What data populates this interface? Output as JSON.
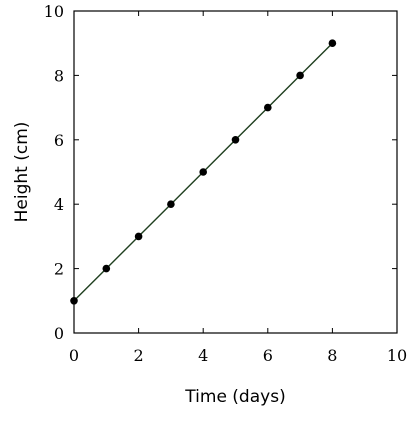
{
  "chart_data": {
    "type": "line",
    "title": "",
    "xlabel": "Time (days)",
    "ylabel": "Height (cm)",
    "xlim": [
      0,
      10
    ],
    "ylim": [
      0,
      10
    ],
    "xticks": [
      0,
      2,
      4,
      6,
      8,
      10
    ],
    "yticks": [
      0,
      2,
      4,
      6,
      8,
      10
    ],
    "xtick_labels": [
      "0",
      "2",
      "4",
      "6",
      "8",
      "10"
    ],
    "ytick_labels": [
      "0",
      "2",
      "4",
      "6",
      "8",
      "10"
    ],
    "grid": false,
    "legend": "none",
    "series": [
      {
        "x": [
          0,
          1,
          2,
          3,
          4,
          5,
          6,
          7,
          8
        ],
        "y": [
          1,
          2,
          3,
          4,
          5,
          6,
          7,
          8,
          9
        ],
        "line_color": "#1f3f1f",
        "marker_color": "#000000",
        "marker": "circle"
      }
    ]
  }
}
